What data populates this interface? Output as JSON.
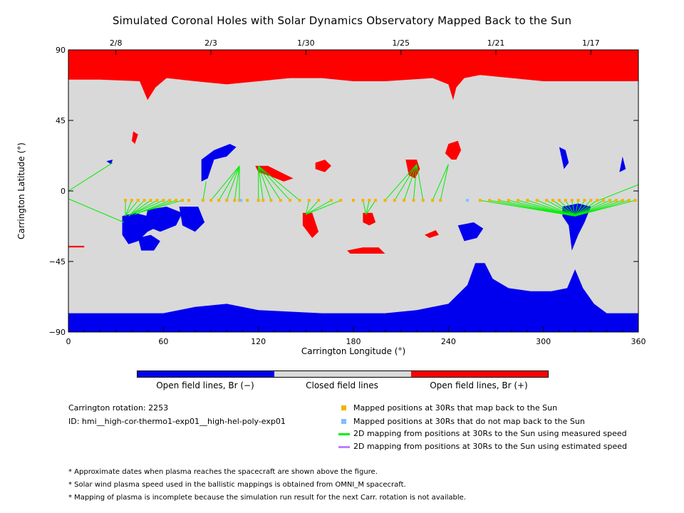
{
  "title": "Simulated Coronal Holes with Solar Dynamics Observatory Mapped Back to the Sun",
  "colors": {
    "negative": "#0000ee",
    "closed": "#d9d9d9",
    "positive": "#ff0000",
    "mapped": "#f0b400",
    "unmapped": "#7fbfff",
    "measured": "#00ee00",
    "estimated": "#bf7fff"
  },
  "chart_data": {
    "type": "scatter",
    "xlabel": "Carrington Longitude (°)",
    "ylabel": "Carrington Latitude (°)",
    "xlim": [
      0,
      360
    ],
    "ylim": [
      -90,
      90
    ],
    "xticks": [
      "0",
      "60",
      "120",
      "180",
      "240",
      "300",
      "360"
    ],
    "yticks": [
      "90",
      "45",
      "0",
      "−45",
      "−90"
    ],
    "top_axis_dates": [
      {
        "label": "2/8",
        "lon": 30
      },
      {
        "label": "2/3",
        "lon": 90
      },
      {
        "label": "1/30",
        "lon": 150
      },
      {
        "label": "1/25",
        "lon": 210
      },
      {
        "label": "1/21",
        "lon": 270
      },
      {
        "label": "1/17",
        "lon": 330
      }
    ],
    "mapped_points": {
      "lat": -6,
      "lon": [
        36,
        40,
        44,
        48,
        52,
        56,
        60,
        64,
        68,
        72,
        76,
        85,
        90,
        95,
        100,
        105,
        108,
        113,
        120,
        123,
        128,
        134,
        140,
        146,
        152,
        158,
        166,
        172,
        180,
        186,
        190,
        194,
        200,
        206,
        212,
        218,
        224,
        230,
        235,
        260,
        266,
        272,
        278,
        284,
        290,
        296,
        302,
        306,
        310,
        314,
        318,
        322,
        326,
        330,
        334,
        338,
        342,
        346,
        350,
        354,
        358
      ]
    },
    "unmapped_points": {
      "lat": -6,
      "lon": [
        109,
        252
      ]
    },
    "mapping_lines": [
      {
        "from": [
          0,
          0
        ],
        "to": [
          28,
          18
        ]
      },
      {
        "from": [
          0,
          -5
        ],
        "to": [
          35,
          -20
        ]
      },
      {
        "from": [
          36,
          -6
        ],
        "to": [
          36,
          -16
        ]
      },
      {
        "from": [
          40,
          -6
        ],
        "to": [
          36,
          -16
        ]
      },
      {
        "from": [
          44,
          -6
        ],
        "to": [
          36,
          -16
        ]
      },
      {
        "from": [
          48,
          -6
        ],
        "to": [
          38,
          -16
        ]
      },
      {
        "from": [
          52,
          -6
        ],
        "to": [
          38,
          -16
        ]
      },
      {
        "from": [
          56,
          -6
        ],
        "to": [
          40,
          -15
        ]
      },
      {
        "from": [
          60,
          -6
        ],
        "to": [
          40,
          -15
        ]
      },
      {
        "from": [
          64,
          -6
        ],
        "to": [
          42,
          -15
        ]
      },
      {
        "from": [
          68,
          -6
        ],
        "to": [
          44,
          -14
        ]
      },
      {
        "from": [
          72,
          -6
        ],
        "to": [
          44,
          -14
        ]
      },
      {
        "from": [
          85,
          -6
        ],
        "to": [
          87,
          6
        ]
      },
      {
        "from": [
          90,
          -6
        ],
        "to": [
          108,
          16
        ]
      },
      {
        "from": [
          95,
          -6
        ],
        "to": [
          108,
          16
        ]
      },
      {
        "from": [
          100,
          -6
        ],
        "to": [
          108,
          16
        ]
      },
      {
        "from": [
          105,
          -6
        ],
        "to": [
          108,
          16
        ]
      },
      {
        "from": [
          108,
          -6
        ],
        "to": [
          108,
          16
        ]
      },
      {
        "from": [
          120,
          -6
        ],
        "to": [
          120,
          16
        ]
      },
      {
        "from": [
          123,
          -6
        ],
        "to": [
          120,
          16
        ]
      },
      {
        "from": [
          128,
          -6
        ],
        "to": [
          120,
          16
        ]
      },
      {
        "from": [
          134,
          -6
        ],
        "to": [
          120,
          16
        ]
      },
      {
        "from": [
          140,
          -6
        ],
        "to": [
          120,
          16
        ]
      },
      {
        "from": [
          146,
          -6
        ],
        "to": [
          120,
          16
        ]
      },
      {
        "from": [
          152,
          -6
        ],
        "to": [
          150,
          -15
        ]
      },
      {
        "from": [
          158,
          -6
        ],
        "to": [
          150,
          -15
        ]
      },
      {
        "from": [
          166,
          -6
        ],
        "to": [
          150,
          -15
        ]
      },
      {
        "from": [
          172,
          -6
        ],
        "to": [
          150,
          -15
        ]
      },
      {
        "from": [
          186,
          -6
        ],
        "to": [
          188,
          -15
        ]
      },
      {
        "from": [
          190,
          -6
        ],
        "to": [
          188,
          -15
        ]
      },
      {
        "from": [
          194,
          -6
        ],
        "to": [
          188,
          -15
        ]
      },
      {
        "from": [
          200,
          -6
        ],
        "to": [
          220,
          17
        ]
      },
      {
        "from": [
          206,
          -6
        ],
        "to": [
          220,
          17
        ]
      },
      {
        "from": [
          212,
          -6
        ],
        "to": [
          220,
          17
        ]
      },
      {
        "from": [
          218,
          -6
        ],
        "to": [
          220,
          17
        ]
      },
      {
        "from": [
          224,
          -6
        ],
        "to": [
          220,
          17
        ]
      },
      {
        "from": [
          230,
          -6
        ],
        "to": [
          240,
          17
        ]
      },
      {
        "from": [
          235,
          -6
        ],
        "to": [
          240,
          17
        ]
      },
      {
        "from": [
          260,
          -6
        ],
        "to": [
          320,
          -16
        ]
      },
      {
        "from": [
          266,
          -6
        ],
        "to": [
          320,
          -16
        ]
      },
      {
        "from": [
          272,
          -6
        ],
        "to": [
          320,
          -16
        ]
      },
      {
        "from": [
          278,
          -6
        ],
        "to": [
          320,
          -16
        ]
      },
      {
        "from": [
          284,
          -6
        ],
        "to": [
          320,
          -16
        ]
      },
      {
        "from": [
          290,
          -6
        ],
        "to": [
          320,
          -16
        ]
      },
      {
        "from": [
          296,
          -6
        ],
        "to": [
          320,
          -16
        ]
      },
      {
        "from": [
          302,
          -6
        ],
        "to": [
          320,
          -16
        ]
      },
      {
        "from": [
          306,
          -6
        ],
        "to": [
          320,
          -16
        ]
      },
      {
        "from": [
          310,
          -6
        ],
        "to": [
          320,
          -16
        ]
      },
      {
        "from": [
          314,
          -6
        ],
        "to": [
          320,
          -16
        ]
      },
      {
        "from": [
          318,
          -6
        ],
        "to": [
          320,
          -16
        ]
      },
      {
        "from": [
          322,
          -6
        ],
        "to": [
          320,
          -16
        ]
      },
      {
        "from": [
          326,
          -6
        ],
        "to": [
          320,
          -16
        ]
      },
      {
        "from": [
          330,
          -6
        ],
        "to": [
          320,
          -16
        ]
      },
      {
        "from": [
          334,
          -6
        ],
        "to": [
          320,
          -16
        ]
      },
      {
        "from": [
          338,
          -6
        ],
        "to": [
          320,
          -16
        ]
      },
      {
        "from": [
          342,
          -6
        ],
        "to": [
          320,
          -16
        ]
      },
      {
        "from": [
          346,
          -6
        ],
        "to": [
          320,
          -16
        ]
      },
      {
        "from": [
          350,
          -6
        ],
        "to": [
          320,
          -16
        ]
      },
      {
        "from": [
          354,
          -6
        ],
        "to": [
          320,
          -16
        ]
      },
      {
        "from": [
          358,
          -6
        ],
        "to": [
          320,
          -16
        ]
      },
      {
        "from": [
          360,
          4
        ],
        "to": [
          335,
          -6
        ]
      }
    ],
    "regions": {
      "north_polar_positive": "lat > ~70",
      "south_polar_negative": "lat < ~-78, extends to ~-45 near lon 255–330"
    }
  },
  "colorbar": {
    "labels": [
      "Open field lines, Br (−)",
      "Closed field lines",
      "Open field lines, Br (+)"
    ]
  },
  "info": {
    "rotation": "Carrington rotation: 2253",
    "id": "ID: hmi__high-cor-thermo1-exp01__high-hel-poly-exp01"
  },
  "legend": [
    "Mapped positions at 30Rs that map back to the Sun",
    "Mapped positions at 30Rs that do not map back to the Sun",
    "2D mapping from positions at 30Rs to the Sun using measured speed",
    "2D mapping from positions at 30Rs to the Sun using estimated speed"
  ],
  "notes": [
    "* Approximate dates when plasma reaches the spacecraft are shown above the figure.",
    "* Solar wind plasma speed used in the ballistic mappings is obtained from OMNI_M spacecraft.",
    "* Mapping of plasma is incomplete because the simulation run result for the next Carr. rotation is not available."
  ]
}
